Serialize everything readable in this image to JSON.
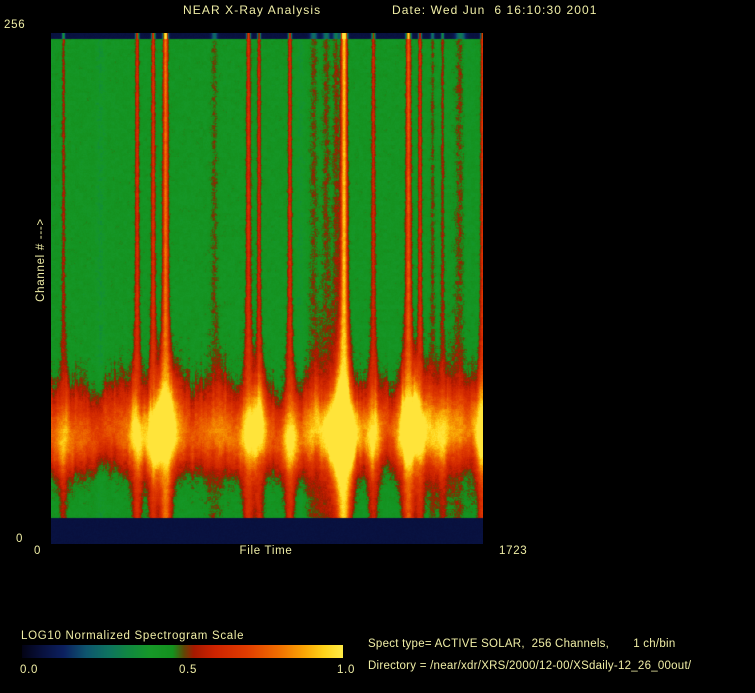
{
  "colors": {
    "background": "#000000",
    "text": "#f0eea6"
  },
  "header": {
    "title": "NEAR X-Ray Analysis",
    "date_label": "Date: Wed Jun  6 16:10:30 2001"
  },
  "plot": {
    "y_axis": {
      "label": "Channel #  --->",
      "max_tick": "256",
      "min_tick": "0"
    },
    "x_axis": {
      "label": "File Time",
      "min_tick": "0",
      "max_tick": "1723"
    }
  },
  "colorbar": {
    "title": "LOG10 Normalized Spectrogram Scale",
    "tick_labels": [
      "0.0",
      "0.5",
      "1.0"
    ]
  },
  "info": {
    "spect_line": "Spect type= ACTIVE SOLAR,  256 Channels,       1 ch/bin",
    "directory_line": "Directory = /near/xdr/XRS/2000/12-00/XSdaily-12_26_00out/"
  },
  "chart_data": {
    "type": "heatmap",
    "title": "NEAR X-Ray Analysis",
    "xlabel": "File Time",
    "ylabel": "Channel #",
    "x_range": [
      0,
      1723
    ],
    "y_range": [
      0,
      256
    ],
    "scale_label": "LOG10 Normalized Spectrogram Scale",
    "scale_range": [
      0.0,
      1.0
    ],
    "colormap_stops": [
      [
        0.0,
        3,
        3,
        20
      ],
      [
        0.06,
        8,
        16,
        60
      ],
      [
        0.13,
        12,
        32,
        95
      ],
      [
        0.2,
        14,
        85,
        110
      ],
      [
        0.27,
        14,
        115,
        95
      ],
      [
        0.33,
        16,
        135,
        65
      ],
      [
        0.4,
        22,
        152,
        40
      ],
      [
        0.47,
        20,
        145,
        30
      ],
      [
        0.505,
        95,
        70,
        5
      ],
      [
        0.535,
        165,
        25,
        0
      ],
      [
        0.6,
        205,
        35,
        0
      ],
      [
        0.7,
        225,
        60,
        0
      ],
      [
        0.8,
        240,
        110,
        0
      ],
      [
        0.88,
        250,
        165,
        5
      ],
      [
        0.94,
        255,
        210,
        25
      ],
      [
        1.0,
        255,
        235,
        70
      ]
    ],
    "background_level": 0.435,
    "edge_bands": {
      "top_channels": 3,
      "bottom_channels": 13,
      "level": 0.07
    },
    "low_channel_band": {
      "center_channel": 55,
      "sigma_up_channels": 13,
      "sigma_down_channels": 11,
      "amplitude": 0.31
    },
    "flare_events": [
      {
        "time": 48,
        "strength": 0.22,
        "width": 1.2
      },
      {
        "time": 342,
        "strength": 0.4,
        "width": 1.4
      },
      {
        "time": 406,
        "strength": 0.42,
        "width": 1.4
      },
      {
        "time": 455,
        "strength": 0.72,
        "width": 1.8
      },
      {
        "time": 650,
        "strength": 0.12,
        "width": 2.5
      },
      {
        "time": 786,
        "strength": 0.42,
        "width": 1.6
      },
      {
        "time": 828,
        "strength": 0.34,
        "width": 1.3
      },
      {
        "time": 951,
        "strength": 0.38,
        "width": 1.4
      },
      {
        "time": 1046,
        "strength": 0.13,
        "width": 3.0
      },
      {
        "time": 1096,
        "strength": 0.14,
        "width": 3.0
      },
      {
        "time": 1135,
        "strength": 0.16,
        "width": 2.5
      },
      {
        "time": 1167,
        "strength": 0.95,
        "width": 2.2
      },
      {
        "time": 1284,
        "strength": 0.34,
        "width": 1.4
      },
      {
        "time": 1424,
        "strength": 0.62,
        "width": 1.8
      },
      {
        "time": 1470,
        "strength": 0.36,
        "width": 1.3
      },
      {
        "time": 1520,
        "strength": 0.14,
        "width": 1.5
      },
      {
        "time": 1560,
        "strength": 0.2,
        "width": 1.2
      },
      {
        "time": 1631,
        "strength": 0.15,
        "width": 4.0
      },
      {
        "time": 1719,
        "strength": 0.42,
        "width": 1.4
      }
    ],
    "dim_lanes": [
      {
        "time": 195,
        "depth": 0.045,
        "width": 3
      },
      {
        "time": 993,
        "depth": 0.04,
        "width": 3
      },
      {
        "time": 1651,
        "depth": 0.04,
        "width": 3
      }
    ]
  }
}
